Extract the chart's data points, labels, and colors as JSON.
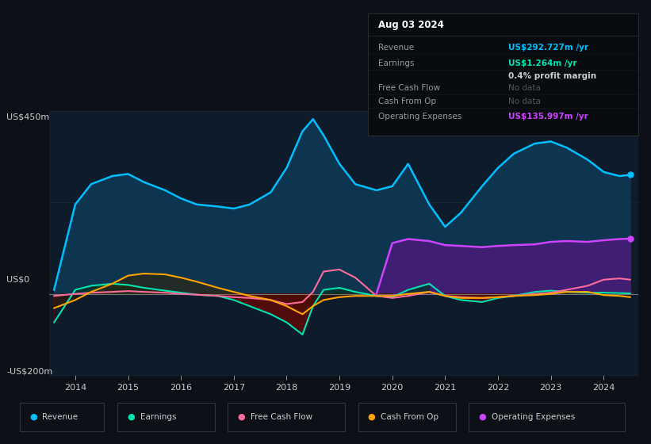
{
  "bg_color": "#0d1117",
  "plot_bg_color": "#0d1b2a",
  "ylabel_top": "US$450m",
  "ylabel_zero": "US$0",
  "ylabel_bottom": "-US$200m",
  "x": [
    2013.6,
    2014.0,
    2014.3,
    2014.7,
    2015.0,
    2015.3,
    2015.7,
    2016.0,
    2016.3,
    2016.7,
    2017.0,
    2017.3,
    2017.7,
    2018.0,
    2018.3,
    2018.5,
    2018.7,
    2019.0,
    2019.3,
    2019.7,
    2020.0,
    2020.3,
    2020.7,
    2021.0,
    2021.3,
    2021.7,
    2022.0,
    2022.3,
    2022.7,
    2023.0,
    2023.3,
    2023.7,
    2024.0,
    2024.3,
    2024.5
  ],
  "revenue": [
    10,
    220,
    270,
    290,
    295,
    275,
    255,
    235,
    220,
    215,
    210,
    220,
    250,
    310,
    400,
    430,
    390,
    320,
    270,
    255,
    265,
    320,
    220,
    165,
    200,
    265,
    310,
    345,
    370,
    375,
    360,
    330,
    300,
    290,
    293
  ],
  "earnings": [
    -70,
    10,
    20,
    25,
    22,
    15,
    8,
    3,
    -2,
    -5,
    -15,
    -30,
    -50,
    -70,
    -100,
    -30,
    10,
    15,
    5,
    -5,
    -8,
    10,
    25,
    -5,
    -15,
    -20,
    -10,
    -5,
    5,
    8,
    5,
    3,
    3,
    2,
    1.3
  ],
  "free_cash_flow": [
    -5,
    0,
    3,
    5,
    7,
    5,
    3,
    0,
    -2,
    -5,
    -8,
    -10,
    -15,
    -25,
    -20,
    5,
    55,
    60,
    40,
    -5,
    -10,
    -5,
    5,
    -5,
    -8,
    -10,
    -8,
    -5,
    0,
    3,
    10,
    20,
    35,
    38,
    35
  ],
  "cash_from_op": [
    -35,
    -15,
    5,
    25,
    45,
    50,
    48,
    40,
    30,
    15,
    5,
    -5,
    -15,
    -30,
    -50,
    -30,
    -15,
    -8,
    -5,
    -5,
    -5,
    0,
    5,
    -5,
    -10,
    -10,
    -8,
    -5,
    -3,
    0,
    5,
    5,
    -3,
    -5,
    -8
  ],
  "opex_x": [
    2019.7,
    2020.0,
    2020.3,
    2020.7,
    2021.0,
    2021.3,
    2021.7,
    2022.0,
    2022.3,
    2022.7,
    2023.0,
    2023.3,
    2023.7,
    2024.0,
    2024.3,
    2024.5
  ],
  "opex_y": [
    0,
    125,
    135,
    130,
    120,
    118,
    115,
    118,
    120,
    122,
    128,
    130,
    128,
    132,
    135,
    136
  ],
  "revenue_color": "#00bfff",
  "earnings_color": "#00e5b0",
  "free_cash_flow_color": "#ff6b9d",
  "cash_from_op_color": "#ffa500",
  "operating_expenses_color": "#cc44ff",
  "revenue_fill": "#0d3550",
  "opex_fill": "#4a1a7a",
  "earnings_neg_fill": "#5a0a0a",
  "zero_line_color": "#888888",
  "grid_color": "#1a2a3a",
  "text_color": "#cccccc",
  "dark_shade": "#0a1520",
  "info_box": {
    "date": "Aug 03 2024",
    "rows": [
      {
        "label": "Revenue",
        "value": "US$292.727m /yr",
        "value_color": "#00bfff"
      },
      {
        "label": "Earnings",
        "value": "US$1.264m /yr",
        "value_color": "#00e5b0"
      },
      {
        "label": "",
        "value": "0.4% profit margin",
        "value_color": "#cccccc"
      },
      {
        "label": "Free Cash Flow",
        "value": "No data",
        "value_color": "#555555"
      },
      {
        "label": "Cash From Op",
        "value": "No data",
        "value_color": "#555555"
      },
      {
        "label": "Operating Expenses",
        "value": "US$135.997m /yr",
        "value_color": "#cc44ff"
      }
    ]
  },
  "legend": [
    {
      "label": "Revenue",
      "color": "#00bfff"
    },
    {
      "label": "Earnings",
      "color": "#00e5b0"
    },
    {
      "label": "Free Cash Flow",
      "color": "#ff6b9d"
    },
    {
      "label": "Cash From Op",
      "color": "#ffa500"
    },
    {
      "label": "Operating Expenses",
      "color": "#cc44ff"
    }
  ]
}
